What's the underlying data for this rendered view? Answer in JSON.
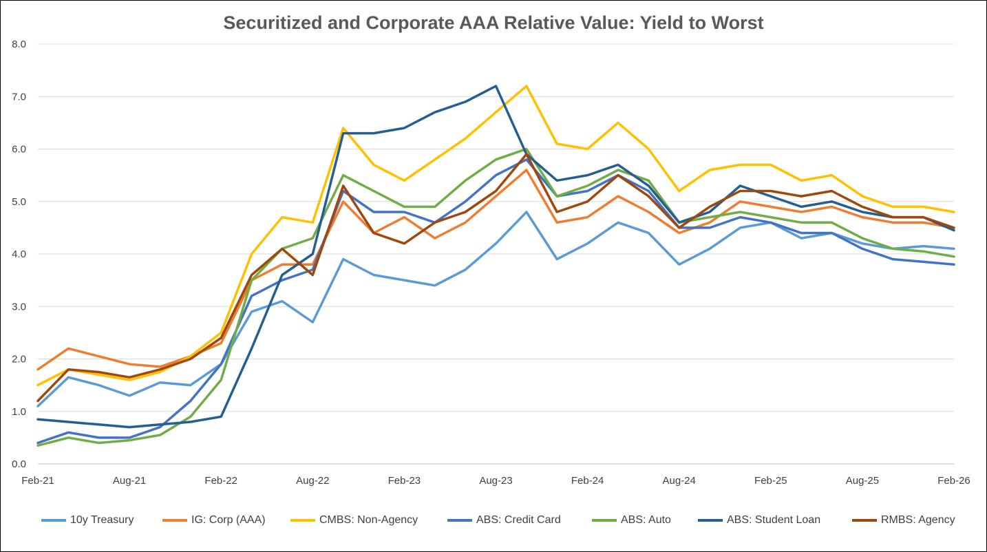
{
  "chart_data": {
    "type": "line",
    "title": "Securitized and Corporate AAA Relative Value: Yield to Worst",
    "xlabel": "",
    "ylabel": "",
    "ylim": [
      0,
      8
    ],
    "yticks": [
      "0.0",
      "1.0",
      "2.0",
      "3.0",
      "4.0",
      "5.0",
      "6.0",
      "7.0",
      "8.0"
    ],
    "xticks": [
      "Feb-21",
      "Aug-21",
      "Feb-22",
      "Aug-22",
      "Feb-23",
      "Aug-23",
      "Feb-24",
      "Aug-24",
      "Feb-25",
      "Aug-25",
      "Feb-26"
    ],
    "grid": "horizontal",
    "legend_position": "bottom",
    "x": [
      "Feb-21",
      "Apr-21",
      "Jun-21",
      "Aug-21",
      "Oct-21",
      "Dec-21",
      "Feb-22",
      "Apr-22",
      "Jun-22",
      "Aug-22",
      "Oct-22",
      "Dec-22",
      "Feb-23",
      "Apr-23",
      "Jun-23",
      "Aug-23",
      "Oct-23",
      "Dec-23",
      "Feb-24",
      "Apr-24",
      "Jun-24",
      "Aug-24",
      "Oct-24",
      "Dec-24",
      "Feb-25",
      "Apr-25",
      "Jun-25",
      "Aug-25",
      "Oct-25",
      "Dec-25",
      "Feb-26"
    ],
    "series": [
      {
        "name": "10y Treasury",
        "color": "#5B9BD5",
        "values": [
          1.1,
          1.65,
          1.5,
          1.3,
          1.55,
          1.5,
          1.9,
          2.9,
          3.1,
          2.7,
          3.9,
          3.6,
          3.5,
          3.4,
          3.7,
          4.2,
          4.8,
          3.9,
          4.2,
          4.6,
          4.4,
          3.8,
          4.1,
          4.5,
          4.6,
          4.3,
          4.4,
          4.2,
          4.1,
          4.15,
          4.1
        ]
      },
      {
        "name": "IG: Corp (AAA)",
        "color": "#ED7D31",
        "values": [
          1.8,
          2.2,
          2.05,
          1.9,
          1.85,
          2.05,
          2.3,
          3.5,
          3.8,
          3.8,
          5.0,
          4.4,
          4.7,
          4.3,
          4.6,
          5.1,
          5.6,
          4.6,
          4.7,
          5.1,
          4.8,
          4.4,
          4.6,
          5.0,
          4.9,
          4.8,
          4.9,
          4.7,
          4.6,
          4.6,
          4.5
        ]
      },
      {
        "name": "CMBS: Non-Agency",
        "color": "#FFC000",
        "values": [
          1.5,
          1.8,
          1.7,
          1.6,
          1.75,
          2.05,
          2.5,
          4.0,
          4.7,
          4.6,
          6.4,
          5.7,
          5.4,
          5.8,
          6.2,
          6.7,
          7.2,
          6.1,
          6.0,
          6.5,
          6.0,
          5.2,
          5.6,
          5.7,
          5.7,
          5.4,
          5.5,
          5.1,
          4.9,
          4.9,
          4.8
        ]
      },
      {
        "name": "ABS: Credit Card",
        "color": "#4472C4",
        "values": [
          0.4,
          0.6,
          0.5,
          0.5,
          0.7,
          1.2,
          1.9,
          3.2,
          3.5,
          3.7,
          5.2,
          4.8,
          4.8,
          4.6,
          5.0,
          5.5,
          5.8,
          5.1,
          5.2,
          5.5,
          5.2,
          4.5,
          4.5,
          4.7,
          4.6,
          4.4,
          4.4,
          4.1,
          3.9,
          3.85,
          3.8
        ]
      },
      {
        "name": "ABS: Auto",
        "color": "#70AD47",
        "values": [
          0.35,
          0.5,
          0.4,
          0.45,
          0.55,
          0.9,
          1.6,
          3.5,
          4.1,
          4.3,
          5.5,
          5.2,
          4.9,
          4.9,
          5.4,
          5.8,
          6.0,
          5.1,
          5.3,
          5.6,
          5.4,
          4.6,
          4.7,
          4.8,
          4.7,
          4.6,
          4.6,
          4.3,
          4.1,
          4.05,
          3.95
        ]
      },
      {
        "name": "ABS: Student Loan",
        "color": "#255E91",
        "values": [
          0.85,
          0.8,
          0.75,
          0.7,
          0.75,
          0.8,
          0.9,
          2.2,
          3.6,
          4.0,
          6.3,
          6.3,
          6.4,
          6.7,
          6.9,
          7.2,
          5.9,
          5.4,
          5.5,
          5.7,
          5.3,
          4.6,
          4.8,
          5.3,
          5.1,
          4.9,
          5.0,
          4.8,
          4.7,
          4.7,
          4.45
        ]
      },
      {
        "name": "RMBS: Agency",
        "color": "#9E480E",
        "values": [
          1.2,
          1.8,
          1.75,
          1.65,
          1.8,
          2.0,
          2.4,
          3.6,
          4.1,
          3.6,
          5.3,
          4.4,
          4.2,
          4.6,
          4.8,
          5.2,
          5.9,
          4.8,
          5.0,
          5.5,
          5.1,
          4.5,
          4.9,
          5.2,
          5.2,
          5.1,
          5.2,
          4.9,
          4.7,
          4.7,
          4.5
        ]
      }
    ]
  },
  "legend": {
    "items": [
      "10y Treasury",
      "IG: Corp (AAA)",
      "CMBS: Non-Agency",
      "ABS: Credit Card",
      "ABS: Auto",
      "ABS: Student Loan",
      "RMBS: Agency"
    ]
  }
}
